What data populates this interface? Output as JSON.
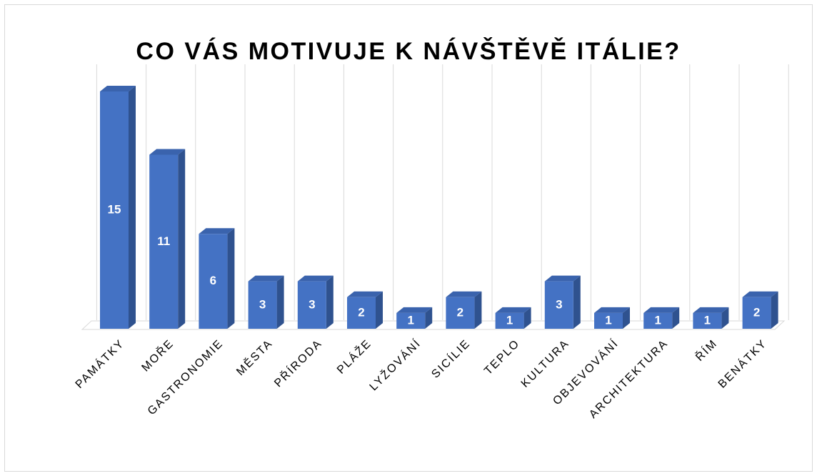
{
  "chart_data": {
    "type": "bar",
    "title": "CO VÁS MOTIVUJE K NÁVŠTĚVĚ ITÁLIE?",
    "categories": [
      "PAMÁTKY",
      "MOŘE",
      "GASTRONOMIE",
      "MĚSTA",
      "PŘÍRODA",
      "PLÁŽE",
      "LYŽOVÁNÍ",
      "SICÍLIE",
      "TEPLO",
      "KULTURA",
      "OBJEVOVÁNÍ",
      "ARCHITEKTURA",
      "ŘÍM",
      "BENÁTKY"
    ],
    "values": [
      15,
      11,
      6,
      3,
      3,
      2,
      1,
      2,
      1,
      3,
      1,
      1,
      1,
      2
    ],
    "color": "#4472c4",
    "ylim": [
      0,
      15
    ]
  }
}
